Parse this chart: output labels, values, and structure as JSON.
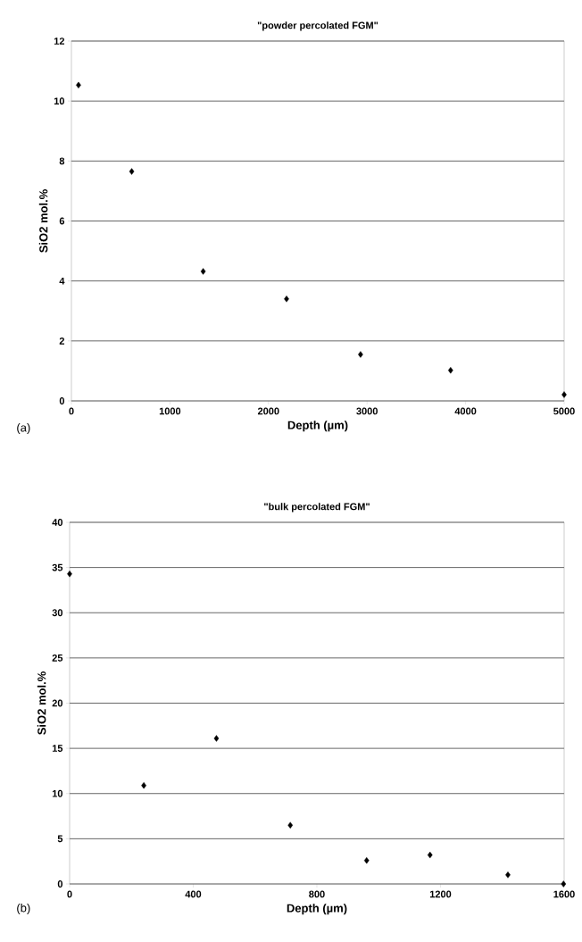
{
  "chart_data": [
    {
      "type": "scatter",
      "title": "\"powder percolated FGM\"",
      "xlabel": "Depth (µm)",
      "ylabel": "SiO2 mol.%",
      "annotations": [
        "(a)"
      ],
      "x": [
        72,
        612,
        1337,
        2183,
        2934,
        3848,
        5000
      ],
      "values": [
        10.53,
        7.65,
        4.32,
        3.4,
        1.55,
        1.02,
        0.21
      ],
      "color": "#000000",
      "marker": "diamond",
      "grid": "y",
      "xlim": [
        0,
        5000
      ],
      "ylim": [
        0,
        12
      ],
      "xticks": [
        0,
        1000,
        2000,
        3000,
        4000,
        5000
      ],
      "yticks": [
        0,
        2,
        4,
        6,
        8,
        10,
        12
      ]
    },
    {
      "type": "scatter",
      "title": "\"bulk percolated FGM\"",
      "xlabel": "Depth (µm)",
      "ylabel": "SiO2 mol.%",
      "annotations": [
        "(b)"
      ],
      "x": [
        0,
        240,
        475,
        714,
        961,
        1166,
        1418,
        1598
      ],
      "values": [
        34.3,
        10.9,
        16.1,
        6.5,
        2.6,
        3.2,
        1.0,
        0.0
      ],
      "color": "#000000",
      "marker": "diamond",
      "grid": "y",
      "xlim": [
        0,
        1600
      ],
      "ylim": [
        0,
        40
      ],
      "xticks": [
        0,
        400,
        800,
        1200,
        1600
      ],
      "yticks": [
        0,
        5,
        10,
        15,
        20,
        25,
        30,
        35,
        40
      ]
    }
  ]
}
